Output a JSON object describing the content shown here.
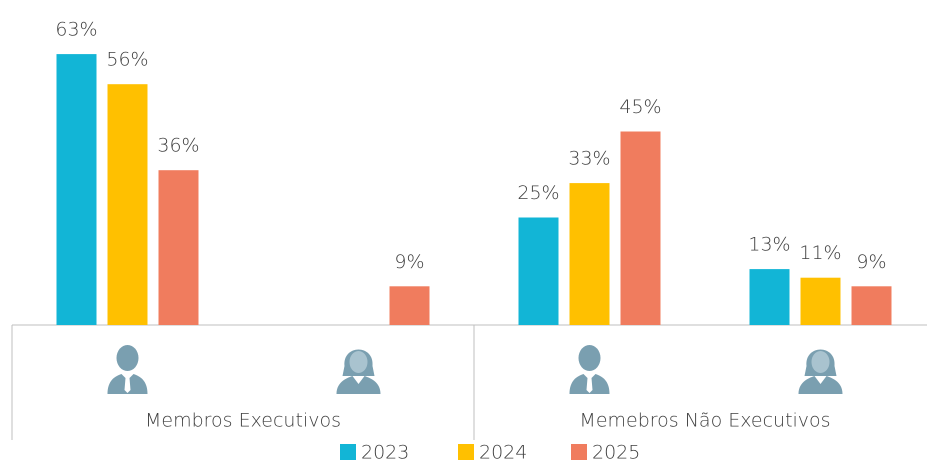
{
  "chart_data": {
    "type": "bar",
    "categories": [
      null,
      null,
      null,
      null
    ],
    "groups": [
      "Membros Executivos",
      "Memebros Não Executivos"
    ],
    "series": [
      {
        "name": "2023",
        "color": "#12b5d6",
        "values": [
          63,
          null,
          25,
          13
        ],
        "value_labels": [
          "63%",
          null,
          "25%",
          "13%"
        ]
      },
      {
        "name": "2024",
        "color": "#ffc000",
        "values": [
          56,
          null,
          33,
          11
        ],
        "value_labels": [
          "56%",
          null,
          "33%",
          "11%"
        ]
      },
      {
        "name": "2025",
        "color": "#f07c5e",
        "values": [
          36,
          9,
          45,
          9
        ],
        "value_labels": [
          "36%",
          "9%",
          "45%",
          "9%"
        ]
      }
    ],
    "legend": "bottom"
  }
}
